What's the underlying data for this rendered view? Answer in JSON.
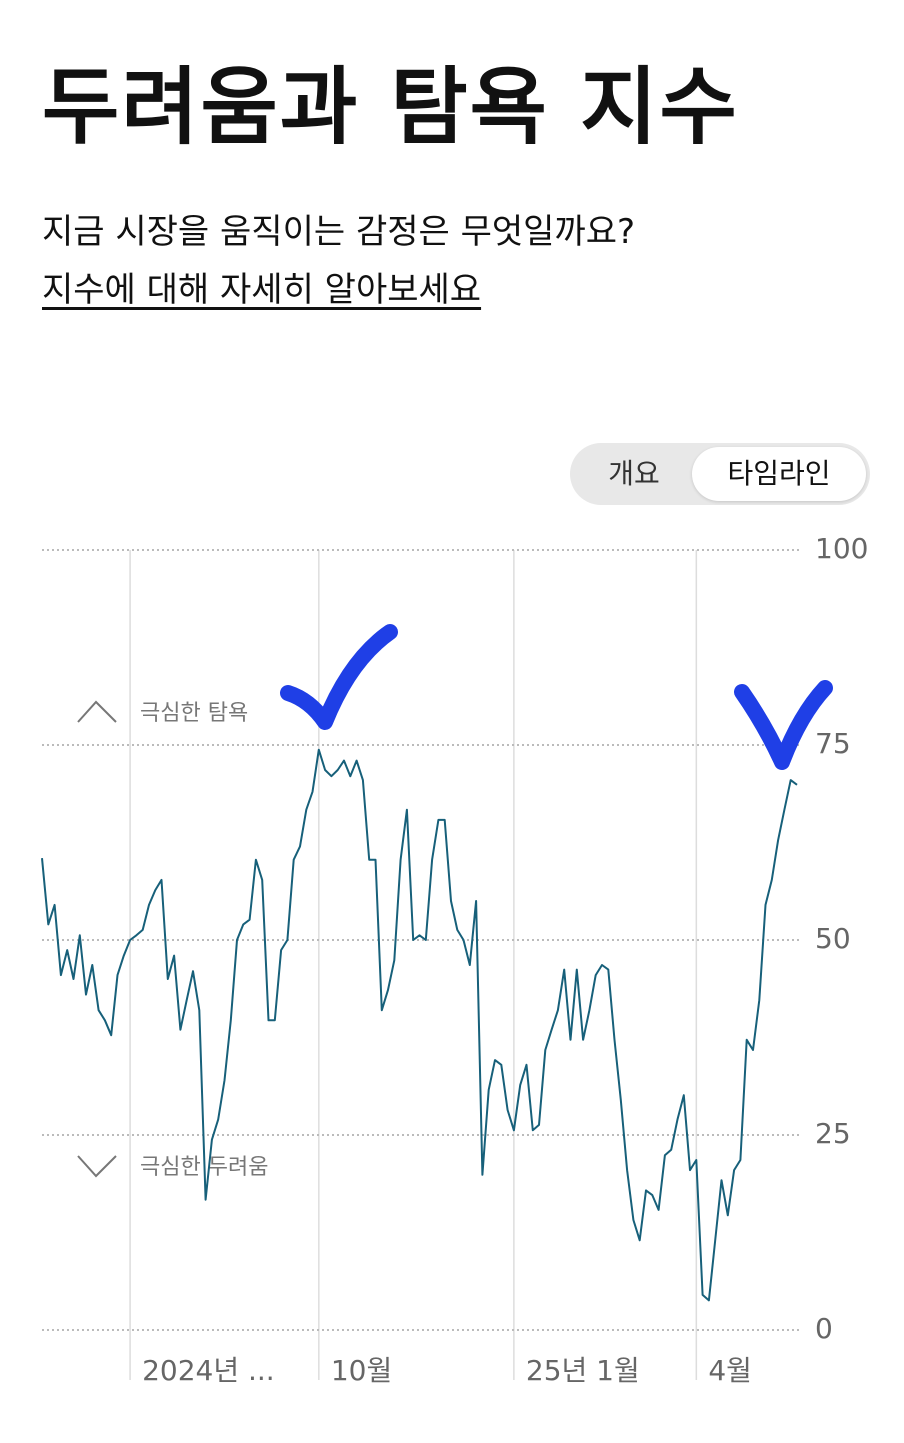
{
  "header": {
    "title": "두려움과 탐욕 지수",
    "subtitle": "지금 시장을 움직이는 감정은 무엇일까요?",
    "link": "지수에 대해 자세히 알아보세요"
  },
  "toggle": {
    "options": [
      "개요",
      "타임라인"
    ]
  },
  "chart_data": {
    "type": "line",
    "color": "#17607a",
    "annotations": [
      "극심한 탐욕",
      "극심한 두려움"
    ],
    "ylim": [
      0,
      100
    ],
    "yticks": [
      0,
      25,
      50,
      75,
      100
    ],
    "grid": true,
    "categories": [
      null,
      null,
      null,
      null,
      null,
      null,
      null,
      null,
      null,
      null,
      null,
      null,
      null,
      null,
      "2024년 ...",
      null,
      null,
      null,
      null,
      null,
      null,
      null,
      null,
      null,
      null,
      null,
      null,
      null,
      null,
      null,
      null,
      null,
      null,
      null,
      null,
      null,
      null,
      null,
      null,
      null,
      null,
      null,
      null,
      null,
      "10월",
      null,
      null,
      null,
      null,
      null,
      null,
      null,
      null,
      null,
      null,
      null,
      null,
      null,
      null,
      null,
      null,
      null,
      null,
      null,
      null,
      null,
      null,
      null,
      null,
      null,
      null,
      null,
      null,
      null,
      null,
      "25년 1월",
      null,
      null,
      null,
      null,
      null,
      null,
      null,
      null,
      null,
      null,
      null,
      null,
      null,
      null,
      null,
      null,
      null,
      null,
      null,
      null,
      null,
      null,
      null,
      null,
      null,
      null,
      null,
      null,
      "4월",
      null,
      null,
      null,
      null,
      null,
      null,
      null,
      null,
      null,
      null,
      null,
      null,
      null,
      null,
      null,
      null
    ],
    "values": [
      60.5,
      52,
      54.5,
      45.5,
      48.7,
      45,
      50.6,
      43,
      46.8,
      41,
      39.7,
      37.8,
      45.5,
      48,
      50,
      50.6,
      51.3,
      54.5,
      56.4,
      57.7,
      45,
      48,
      38.5,
      42.3,
      46,
      41,
      16.7,
      24.4,
      27,
      32,
      39.7,
      50,
      52,
      52.6,
      60.3,
      57.7,
      39.7,
      39.7,
      48.7,
      50,
      60.3,
      62,
      66.7,
      69,
      74.4,
      71.8,
      71,
      71.8,
      73,
      71,
      73,
      70.5,
      60.3,
      60.3,
      41,
      43.6,
      47.4,
      60.3,
      66.7,
      50,
      50.6,
      50,
      60.3,
      65.4,
      65.4,
      55,
      51.3,
      50,
      46.8,
      55,
      19.9,
      30.8,
      34.6,
      34,
      28.2,
      25.6,
      31.4,
      34,
      25.6,
      26.3,
      35.9,
      38.5,
      41,
      46.2,
      37.2,
      46.2,
      37.2,
      41,
      45.5,
      46.8,
      46.2,
      37.2,
      29.5,
      20.5,
      14.1,
      11.5,
      17.9,
      17.3,
      15.4,
      22.4,
      23.1,
      27,
      30.1,
      20.5,
      21.8,
      4.5,
      3.8,
      11.5,
      19.2,
      14.7,
      20.5,
      21.8,
      37.2,
      35.9,
      42.3,
      54.5,
      57.7,
      62.8,
      66.7,
      70.5,
      69.9
    ]
  }
}
